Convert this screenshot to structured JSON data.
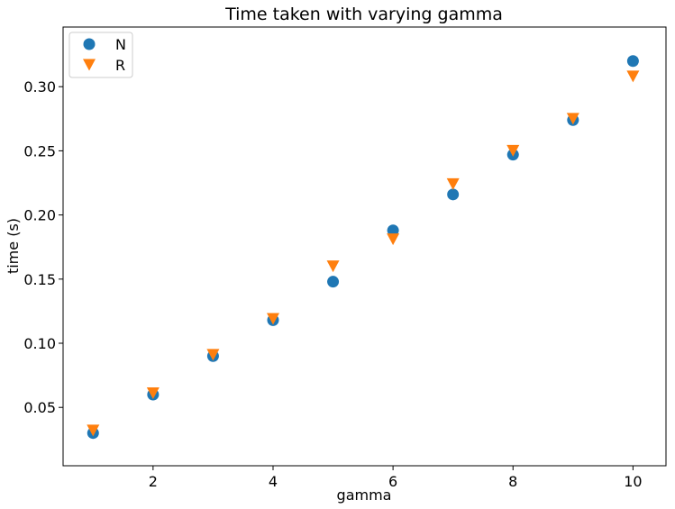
{
  "chart_data": {
    "type": "scatter",
    "title": "Time taken with varying gamma",
    "xlabel": "gamma",
    "ylabel": "time (s)",
    "xlim": [
      0.5,
      10.55
    ],
    "ylim": [
      0.0045,
      0.3465
    ],
    "xticks": [
      2,
      4,
      6,
      8,
      10
    ],
    "xtick_labels": [
      "2",
      "4",
      "6",
      "8",
      "10"
    ],
    "yticks": [
      0.05,
      0.1,
      0.15,
      0.2,
      0.25,
      0.3
    ],
    "ytick_labels": [
      "0.05",
      "0.10",
      "0.15",
      "0.20",
      "0.25",
      "0.30"
    ],
    "grid": false,
    "legend_position": "top-left",
    "series": [
      {
        "name": "N",
        "marker": "circle",
        "color": "#1f77b4",
        "x": [
          1,
          2,
          3,
          4,
          5,
          6,
          7,
          8,
          9,
          10
        ],
        "y": [
          0.03,
          0.06,
          0.09,
          0.118,
          0.148,
          0.188,
          0.216,
          0.247,
          0.274,
          0.32
        ]
      },
      {
        "name": "R",
        "marker": "triangle-down",
        "color": "#ff7f0e",
        "x": [
          1,
          2,
          3,
          4,
          5,
          6,
          7,
          8,
          9,
          10
        ],
        "y": [
          0.032,
          0.061,
          0.091,
          0.119,
          0.16,
          0.181,
          0.224,
          0.25,
          0.275,
          0.308
        ]
      }
    ]
  }
}
